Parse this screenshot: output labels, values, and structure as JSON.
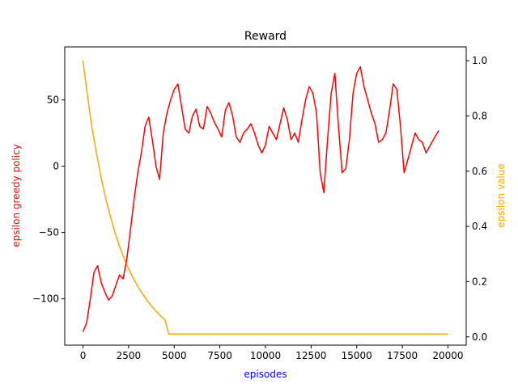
{
  "chart_data": {
    "type": "line",
    "title": "Reward",
    "xlabel": "episodes",
    "ylabel_left": "epsilon greedy policy",
    "ylabel_right": "epsilon value",
    "colors": {
      "reward": "#ff0000",
      "epsilon": "#ffa500",
      "xlabel": "#0000ff",
      "ylabel_left": "#ff0000",
      "ylabel_right": "#ffa500"
    },
    "xlim": [
      -1000,
      21000
    ],
    "ylim_left": [
      -135,
      90
    ],
    "ylim_right": [
      -0.03,
      1.05
    ],
    "grid": false,
    "x_ticks": [
      0,
      2500,
      5000,
      7500,
      10000,
      12500,
      15000,
      17500,
      20000
    ],
    "y_ticks_left": [
      -100,
      -50,
      0,
      50
    ],
    "y_ticks_right": [
      0.0,
      0.2,
      0.4,
      0.6,
      0.8,
      1.0
    ],
    "x_tick_labels": [
      "0",
      "2500",
      "5000",
      "7500",
      "10000",
      "12500",
      "15000",
      "17500",
      "20000"
    ],
    "y_tick_labels_left": [
      "−100",
      "−50",
      "0",
      "50"
    ],
    "y_tick_labels_right": [
      "0.0",
      "0.2",
      "0.4",
      "0.6",
      "0.8",
      "1.0"
    ],
    "series": [
      {
        "axis": "left",
        "x": [
          0,
          200,
          400,
          600,
          800,
          1000,
          1200,
          1400,
          1600,
          1800,
          2000,
          2200,
          2400,
          2600,
          2800,
          3000,
          3200,
          3400,
          3600,
          3800,
          4000,
          4200,
          4400,
          4600,
          4800,
          5000,
          5200,
          5400,
          5600,
          5800,
          6000,
          6200,
          6400,
          6600,
          6800,
          7000,
          7200,
          7400,
          7600,
          7800,
          8000,
          8200,
          8400,
          8600,
          8800,
          9000,
          9200,
          9400,
          9600,
          9800,
          10000,
          10200,
          10400,
          10600,
          10800,
          11000,
          11200,
          11400,
          11600,
          11800,
          12000,
          12200,
          12400,
          12600,
          12800,
          13000,
          13200,
          13400,
          13600,
          13800,
          14000,
          14200,
          14400,
          14600,
          14800,
          15000,
          15200,
          15400,
          15600,
          15800,
          16000,
          16200,
          16400,
          16600,
          16800,
          17000,
          17200,
          17400,
          17600,
          17800,
          18000,
          18200,
          18400,
          18600,
          18800,
          19000,
          19200,
          19500
        ],
        "values": [
          -125,
          -118,
          -100,
          -80,
          -75,
          -88,
          -95,
          -101,
          -98,
          -90,
          -82,
          -85,
          -70,
          -48,
          -25,
          -5,
          10,
          30,
          37,
          20,
          0,
          -10,
          25,
          40,
          50,
          58,
          62,
          45,
          28,
          25,
          38,
          43,
          30,
          28,
          45,
          40,
          33,
          28,
          22,
          42,
          48,
          38,
          22,
          18,
          25,
          28,
          32,
          25,
          16,
          10,
          16,
          30,
          25,
          20,
          32,
          44,
          35,
          20,
          25,
          18,
          35,
          50,
          60,
          55,
          40,
          -5,
          -20,
          20,
          55,
          70,
          30,
          -5,
          -2,
          20,
          55,
          70,
          75,
          60,
          50,
          40,
          32,
          18,
          20,
          25,
          42,
          62,
          58,
          30,
          -5,
          5,
          15,
          25,
          20,
          18,
          10,
          15,
          20,
          27
        ]
      },
      {
        "axis": "right",
        "x": [
          0,
          250,
          500,
          750,
          1000,
          1250,
          1500,
          1750,
          2000,
          2250,
          2500,
          2750,
          3000,
          3250,
          3500,
          3750,
          4000,
          4250,
          4500,
          4700,
          5000,
          7500,
          10000,
          12500,
          15000,
          17500,
          20000
        ],
        "values": [
          1.0,
          0.87,
          0.755,
          0.66,
          0.575,
          0.5,
          0.435,
          0.378,
          0.328,
          0.285,
          0.247,
          0.213,
          0.183,
          0.157,
          0.133,
          0.112,
          0.093,
          0.076,
          0.061,
          0.01,
          0.01,
          0.01,
          0.01,
          0.01,
          0.01,
          0.01,
          0.01
        ]
      }
    ]
  }
}
